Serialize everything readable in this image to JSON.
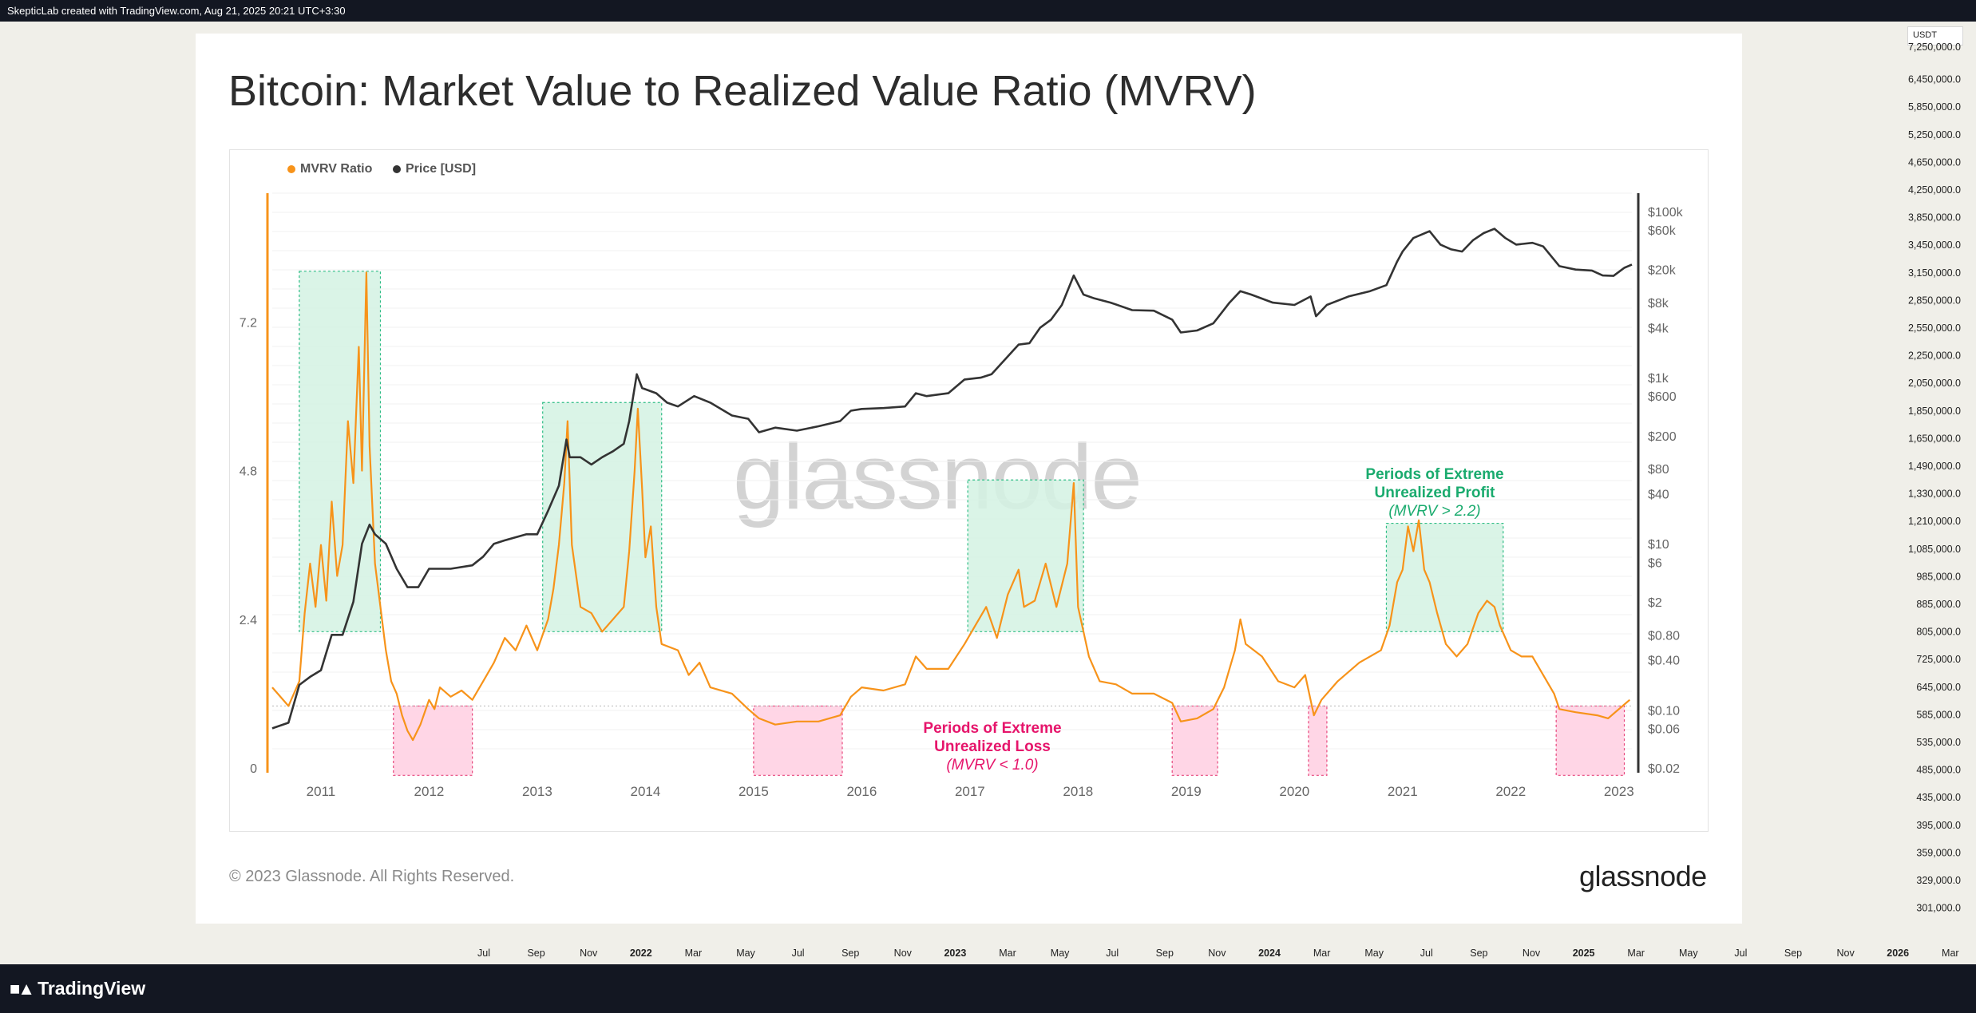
{
  "window": {
    "attribution": "SkepticLab created with TradingView.com, Aug 21, 2025 20:21 UTC+3:30",
    "platform_logo": "TradingView",
    "currency_badge": "USDT"
  },
  "card": {
    "title": "Bitcoin: Market Value to Realized Value Ratio (MVRV)",
    "copyright": "© 2023 Glassnode. All Rights Reserved.",
    "brand": "glassnode",
    "watermark": "glassnode"
  },
  "legend": {
    "mvrv": {
      "label": "MVRV Ratio",
      "color": "#f7931a"
    },
    "price": {
      "label": "Price [USD]",
      "color": "#333333"
    }
  },
  "colors": {
    "profit_fill": "#d4f2e3",
    "profit_border": "#2ebd85",
    "profit_text": "#1aab6e",
    "loss_fill": "#ffd1e3",
    "loss_border": "#e8477d",
    "loss_text": "#e6156b"
  },
  "annotations": {
    "profit": {
      "line1": "Periods of Extreme",
      "line2": "Unrealized Profit",
      "line3": "(MVRV > 2.2)"
    },
    "loss": {
      "line1": "Periods of Extreme",
      "line2": "Unrealized Loss",
      "line3": "(MVRV < 1.0)"
    }
  },
  "tradingview_axes": {
    "right_ticks": [
      "7,250,000.0",
      "6,450,000.0",
      "5,850,000.0",
      "5,250,000.0",
      "4,650,000.0",
      "4,250,000.0",
      "3,850,000.0",
      "3,450,000.0",
      "3,150,000.0",
      "2,850,000.0",
      "2,550,000.0",
      "2,250,000.0",
      "2,050,000.0",
      "1,850,000.0",
      "1,650,000.0",
      "1,490,000.0",
      "1,330,000.0",
      "1,210,000.0",
      "1,085,000.0",
      "985,000.0",
      "885,000.0",
      "805,000.0",
      "725,000.0",
      "645,000.0",
      "585,000.0",
      "535,000.0",
      "485,000.0",
      "435,000.0",
      "395,000.0",
      "359,000.0",
      "329,000.0",
      "301,000.0"
    ],
    "bottom_ticks": [
      "Jul",
      "Sep",
      "Nov",
      "2022",
      "Mar",
      "May",
      "Jul",
      "Sep",
      "Nov",
      "2023",
      "Mar",
      "May",
      "Jul",
      "Sep",
      "Nov",
      "2024",
      "Mar",
      "May",
      "Jul",
      "Sep",
      "Nov",
      "2025",
      "Mar",
      "May",
      "Jul",
      "Sep",
      "Nov",
      "2026",
      "Mar"
    ]
  },
  "chart_data": {
    "type": "line",
    "title": "Bitcoin: Market Value to Realized Value Ratio (MVRV)",
    "x_ticks": [
      "2011",
      "2012",
      "2013",
      "2014",
      "2015",
      "2016",
      "2017",
      "2018",
      "2019",
      "2020",
      "2021",
      "2022",
      "2023"
    ],
    "x_range": [
      2010.55,
      2023.12
    ],
    "y_left": {
      "ticks": [
        "0",
        "2.4",
        "4.8",
        "7.2"
      ],
      "range": [
        0,
        9.5
      ]
    },
    "y_right": {
      "scale": "log",
      "ticks": [
        "$0.02",
        "$0.06",
        "$0.10",
        "$0.40",
        "$0.80",
        "$2",
        "$6",
        "$10",
        "$40",
        "$80",
        "$200",
        "$600",
        "$1k",
        "$4k",
        "$8k",
        "$20k",
        "$60k",
        "$100k"
      ],
      "range": [
        0.02,
        100000
      ]
    },
    "reference_line": {
      "series": "MVRV Ratio",
      "value": 1.0
    },
    "profit_zones": [
      [
        2010.8,
        2011.55
      ],
      [
        2013.05,
        2014.15
      ],
      [
        2016.98,
        2018.05
      ],
      [
        2020.85,
        2021.93
      ]
    ],
    "loss_zones": [
      [
        2011.67,
        2012.4
      ],
      [
        2015.0,
        2015.82
      ],
      [
        2018.87,
        2019.29
      ],
      [
        2020.13,
        2020.3
      ],
      [
        2022.42,
        2023.05
      ]
    ],
    "series": [
      {
        "name": "MVRV Ratio",
        "points": [
          [
            2010.55,
            1.3
          ],
          [
            2010.6,
            1.2
          ],
          [
            2010.7,
            1.0
          ],
          [
            2010.8,
            1.4
          ],
          [
            2010.85,
            2.5
          ],
          [
            2010.9,
            3.3
          ],
          [
            2010.95,
            2.6
          ],
          [
            2011.0,
            3.6
          ],
          [
            2011.05,
            2.7
          ],
          [
            2011.1,
            4.3
          ],
          [
            2011.15,
            3.1
          ],
          [
            2011.2,
            3.6
          ],
          [
            2011.25,
            5.6
          ],
          [
            2011.3,
            4.6
          ],
          [
            2011.35,
            6.8
          ],
          [
            2011.38,
            4.8
          ],
          [
            2011.42,
            8.0
          ],
          [
            2011.45,
            5.2
          ],
          [
            2011.5,
            3.3
          ],
          [
            2011.55,
            2.6
          ],
          [
            2011.6,
            1.9
          ],
          [
            2011.65,
            1.4
          ],
          [
            2011.7,
            1.2
          ],
          [
            2011.75,
            0.85
          ],
          [
            2011.8,
            0.6
          ],
          [
            2011.85,
            0.45
          ],
          [
            2011.92,
            0.7
          ],
          [
            2012.0,
            1.1
          ],
          [
            2012.05,
            0.95
          ],
          [
            2012.1,
            1.3
          ],
          [
            2012.2,
            1.15
          ],
          [
            2012.3,
            1.25
          ],
          [
            2012.4,
            1.1
          ],
          [
            2012.5,
            1.4
          ],
          [
            2012.6,
            1.7
          ],
          [
            2012.7,
            2.1
          ],
          [
            2012.8,
            1.9
          ],
          [
            2012.9,
            2.3
          ],
          [
            2013.0,
            1.9
          ],
          [
            2013.1,
            2.4
          ],
          [
            2013.15,
            2.9
          ],
          [
            2013.2,
            3.6
          ],
          [
            2013.25,
            4.6
          ],
          [
            2013.28,
            5.6
          ],
          [
            2013.32,
            3.6
          ],
          [
            2013.4,
            2.6
          ],
          [
            2013.5,
            2.5
          ],
          [
            2013.6,
            2.2
          ],
          [
            2013.7,
            2.4
          ],
          [
            2013.8,
            2.6
          ],
          [
            2013.85,
            3.5
          ],
          [
            2013.9,
            4.8
          ],
          [
            2013.93,
            5.8
          ],
          [
            2013.97,
            4.5
          ],
          [
            2014.0,
            3.4
          ],
          [
            2014.05,
            3.9
          ],
          [
            2014.1,
            2.6
          ],
          [
            2014.15,
            2.0
          ],
          [
            2014.3,
            1.9
          ],
          [
            2014.4,
            1.5
          ],
          [
            2014.5,
            1.7
          ],
          [
            2014.6,
            1.3
          ],
          [
            2014.8,
            1.2
          ],
          [
            2014.95,
            0.95
          ],
          [
            2015.05,
            0.8
          ],
          [
            2015.2,
            0.7
          ],
          [
            2015.4,
            0.75
          ],
          [
            2015.6,
            0.75
          ],
          [
            2015.8,
            0.85
          ],
          [
            2015.9,
            1.15
          ],
          [
            2016.0,
            1.3
          ],
          [
            2016.2,
            1.25
          ],
          [
            2016.4,
            1.35
          ],
          [
            2016.5,
            1.8
          ],
          [
            2016.6,
            1.6
          ],
          [
            2016.8,
            1.6
          ],
          [
            2016.95,
            2.0
          ],
          [
            2017.05,
            2.3
          ],
          [
            2017.15,
            2.6
          ],
          [
            2017.25,
            2.1
          ],
          [
            2017.35,
            2.8
          ],
          [
            2017.45,
            3.2
          ],
          [
            2017.5,
            2.6
          ],
          [
            2017.6,
            2.7
          ],
          [
            2017.7,
            3.3
          ],
          [
            2017.8,
            2.6
          ],
          [
            2017.9,
            3.3
          ],
          [
            2017.96,
            4.6
          ],
          [
            2018.0,
            2.6
          ],
          [
            2018.05,
            2.2
          ],
          [
            2018.1,
            1.8
          ],
          [
            2018.2,
            1.4
          ],
          [
            2018.35,
            1.35
          ],
          [
            2018.5,
            1.2
          ],
          [
            2018.7,
            1.2
          ],
          [
            2018.87,
            1.05
          ],
          [
            2018.95,
            0.75
          ],
          [
            2019.1,
            0.8
          ],
          [
            2019.25,
            0.95
          ],
          [
            2019.35,
            1.3
          ],
          [
            2019.45,
            1.9
          ],
          [
            2019.5,
            2.4
          ],
          [
            2019.55,
            2.0
          ],
          [
            2019.7,
            1.8
          ],
          [
            2019.85,
            1.4
          ],
          [
            2020.0,
            1.3
          ],
          [
            2020.1,
            1.5
          ],
          [
            2020.18,
            0.85
          ],
          [
            2020.25,
            1.1
          ],
          [
            2020.4,
            1.4
          ],
          [
            2020.6,
            1.7
          ],
          [
            2020.8,
            1.9
          ],
          [
            2020.88,
            2.3
          ],
          [
            2020.95,
            3.0
          ],
          [
            2021.0,
            3.2
          ],
          [
            2021.05,
            3.9
          ],
          [
            2021.1,
            3.5
          ],
          [
            2021.15,
            4.0
          ],
          [
            2021.2,
            3.2
          ],
          [
            2021.25,
            3.0
          ],
          [
            2021.32,
            2.5
          ],
          [
            2021.4,
            2.0
          ],
          [
            2021.5,
            1.8
          ],
          [
            2021.6,
            2.0
          ],
          [
            2021.7,
            2.5
          ],
          [
            2021.78,
            2.7
          ],
          [
            2021.85,
            2.6
          ],
          [
            2021.9,
            2.3
          ],
          [
            2022.0,
            1.9
          ],
          [
            2022.1,
            1.8
          ],
          [
            2022.2,
            1.8
          ],
          [
            2022.3,
            1.5
          ],
          [
            2022.4,
            1.2
          ],
          [
            2022.45,
            0.95
          ],
          [
            2022.6,
            0.9
          ],
          [
            2022.8,
            0.85
          ],
          [
            2022.9,
            0.8
          ],
          [
            2023.0,
            0.95
          ],
          [
            2023.1,
            1.1
          ]
        ]
      },
      {
        "name": "Price [USD]",
        "points": [
          [
            2010.55,
            0.06
          ],
          [
            2010.7,
            0.07
          ],
          [
            2010.8,
            0.2
          ],
          [
            2010.9,
            0.25
          ],
          [
            2011.0,
            0.3
          ],
          [
            2011.1,
            0.8
          ],
          [
            2011.2,
            0.8
          ],
          [
            2011.3,
            2
          ],
          [
            2011.38,
            10
          ],
          [
            2011.45,
            17
          ],
          [
            2011.5,
            13
          ],
          [
            2011.6,
            10
          ],
          [
            2011.7,
            5
          ],
          [
            2011.8,
            3
          ],
          [
            2011.9,
            3
          ],
          [
            2012.0,
            5
          ],
          [
            2012.2,
            5
          ],
          [
            2012.4,
            5.5
          ],
          [
            2012.5,
            7
          ],
          [
            2012.6,
            10
          ],
          [
            2012.7,
            11
          ],
          [
            2012.9,
            13
          ],
          [
            2013.0,
            13
          ],
          [
            2013.1,
            25
          ],
          [
            2013.2,
            50
          ],
          [
            2013.27,
            180
          ],
          [
            2013.3,
            110
          ],
          [
            2013.4,
            110
          ],
          [
            2013.5,
            90
          ],
          [
            2013.6,
            110
          ],
          [
            2013.7,
            130
          ],
          [
            2013.8,
            160
          ],
          [
            2013.85,
            300
          ],
          [
            2013.92,
            1100
          ],
          [
            2013.97,
            750
          ],
          [
            2014.1,
            650
          ],
          [
            2014.2,
            500
          ],
          [
            2014.3,
            450
          ],
          [
            2014.45,
            600
          ],
          [
            2014.6,
            500
          ],
          [
            2014.8,
            350
          ],
          [
            2014.95,
            320
          ],
          [
            2015.05,
            220
          ],
          [
            2015.2,
            250
          ],
          [
            2015.4,
            230
          ],
          [
            2015.6,
            260
          ],
          [
            2015.8,
            300
          ],
          [
            2015.9,
            400
          ],
          [
            2016.0,
            420
          ],
          [
            2016.2,
            430
          ],
          [
            2016.4,
            450
          ],
          [
            2016.5,
            650
          ],
          [
            2016.6,
            600
          ],
          [
            2016.8,
            650
          ],
          [
            2016.95,
            950
          ],
          [
            2017.1,
            1000
          ],
          [
            2017.2,
            1100
          ],
          [
            2017.35,
            1800
          ],
          [
            2017.45,
            2500
          ],
          [
            2017.55,
            2600
          ],
          [
            2017.65,
            4000
          ],
          [
            2017.75,
            5000
          ],
          [
            2017.85,
            7500
          ],
          [
            2017.96,
            17000
          ],
          [
            2018.05,
            10000
          ],
          [
            2018.15,
            9000
          ],
          [
            2018.3,
            8000
          ],
          [
            2018.5,
            6500
          ],
          [
            2018.7,
            6400
          ],
          [
            2018.87,
            5000
          ],
          [
            2018.95,
            3500
          ],
          [
            2019.1,
            3700
          ],
          [
            2019.25,
            4500
          ],
          [
            2019.4,
            8000
          ],
          [
            2019.5,
            11000
          ],
          [
            2019.6,
            10000
          ],
          [
            2019.8,
            8000
          ],
          [
            2020.0,
            7500
          ],
          [
            2020.15,
            9500
          ],
          [
            2020.2,
            5500
          ],
          [
            2020.3,
            7500
          ],
          [
            2020.5,
            9500
          ],
          [
            2020.7,
            11000
          ],
          [
            2020.85,
            13000
          ],
          [
            2020.95,
            25000
          ],
          [
            2021.0,
            33000
          ],
          [
            2021.1,
            48000
          ],
          [
            2021.25,
            58000
          ],
          [
            2021.35,
            40000
          ],
          [
            2021.45,
            35000
          ],
          [
            2021.55,
            33000
          ],
          [
            2021.65,
            45000
          ],
          [
            2021.75,
            55000
          ],
          [
            2021.85,
            62000
          ],
          [
            2021.95,
            48000
          ],
          [
            2022.05,
            40000
          ],
          [
            2022.2,
            42000
          ],
          [
            2022.3,
            38000
          ],
          [
            2022.45,
            22000
          ],
          [
            2022.6,
            20000
          ],
          [
            2022.75,
            19500
          ],
          [
            2022.85,
            17000
          ],
          [
            2022.95,
            16800
          ],
          [
            2023.05,
            21000
          ],
          [
            2023.12,
            23000
          ]
        ]
      }
    ]
  }
}
